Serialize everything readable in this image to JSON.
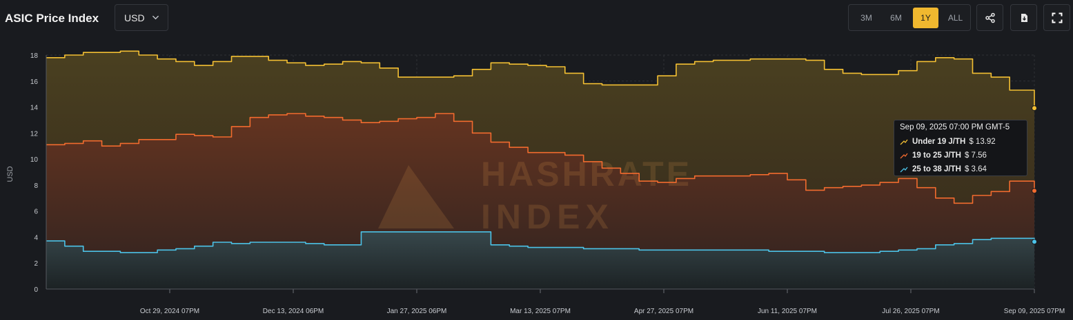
{
  "header": {
    "title": "ASIC Price Index",
    "currency": "USD",
    "ranges": [
      "3M",
      "6M",
      "1Y",
      "ALL"
    ],
    "active_range": "1Y"
  },
  "icons": {
    "share": "share-icon",
    "download": "download-icon",
    "fullscreen": "fullscreen-icon",
    "currency_dropdown": "chevron-down-icon"
  },
  "colors": {
    "under19": "#f4c033",
    "r19to25": "#f26b2e",
    "r25to38": "#4cc3e8",
    "active_range": "#f0b82f"
  },
  "watermark": [
    "HASHRATE",
    "INDEX"
  ],
  "tooltip": {
    "title": "Sep 09, 2025 07:00 PM GMT-5",
    "rows": [
      {
        "name": "Under 19 J/TH",
        "value": "$ 13.92"
      },
      {
        "name": "19 to 25 J/TH",
        "value": "$ 7.56"
      },
      {
        "name": "25 to 38 J/TH",
        "value": "$ 3.64"
      }
    ]
  },
  "chart_data": {
    "type": "line",
    "title": "",
    "xlabel": "",
    "ylabel": "USD",
    "ylim": [
      0,
      18
    ],
    "yticks": [
      0,
      2,
      4,
      6,
      8,
      10,
      12,
      14,
      16,
      18
    ],
    "xlim": [
      -1.0,
      15.0
    ],
    "xticks": [
      {
        "x": 1.0,
        "label": "Oct 29, 2024 07PM"
      },
      {
        "x": 3.0,
        "label": "Dec 13, 2024 06PM"
      },
      {
        "x": 5.0,
        "label": "Jan 27, 2025 06PM"
      },
      {
        "x": 7.0,
        "label": "Mar 13, 2025 07PM"
      },
      {
        "x": 9.0,
        "label": "Apr 27, 2025 07PM"
      },
      {
        "x": 11.0,
        "label": "Jun 11, 2025 07PM"
      },
      {
        "x": 13.0,
        "label": "Jul 26, 2025 07PM"
      },
      {
        "x": 15.0,
        "label": "Sep 09, 2025 07PM"
      }
    ],
    "grid": true,
    "series": [
      {
        "name": "Under 19 J/TH",
        "x": [
          -1.0,
          -0.7,
          -0.4,
          -0.1,
          0.2,
          0.5,
          0.8,
          1.1,
          1.4,
          1.7,
          2.0,
          2.3,
          2.6,
          2.9,
          3.2,
          3.5,
          3.8,
          4.1,
          4.4,
          4.7,
          5.0,
          5.3,
          5.6,
          5.9,
          6.2,
          6.5,
          6.8,
          7.1,
          7.4,
          7.7,
          8.0,
          8.3,
          8.6,
          8.9,
          9.2,
          9.5,
          9.8,
          10.1,
          10.4,
          10.7,
          11.0,
          11.3,
          11.6,
          11.9,
          12.2,
          12.5,
          12.8,
          13.1,
          13.4,
          13.7,
          14.0,
          14.3,
          14.6,
          15.0
        ],
        "values": [
          17.8,
          18.0,
          18.2,
          18.2,
          18.3,
          18.0,
          17.7,
          17.5,
          17.2,
          17.5,
          17.9,
          17.9,
          17.6,
          17.4,
          17.2,
          17.3,
          17.5,
          17.4,
          17.0,
          16.3,
          16.3,
          16.3,
          16.4,
          16.9,
          17.4,
          17.3,
          17.2,
          17.1,
          16.6,
          15.8,
          15.7,
          15.7,
          15.7,
          16.4,
          17.3,
          17.5,
          17.6,
          17.6,
          17.7,
          17.7,
          17.7,
          17.6,
          16.9,
          16.6,
          16.5,
          16.5,
          16.8,
          17.5,
          17.8,
          17.7,
          16.6,
          16.3,
          15.3,
          13.92
        ]
      },
      {
        "name": "19 to 25 J/TH",
        "x": [
          -1.0,
          -0.7,
          -0.4,
          -0.1,
          0.2,
          0.5,
          0.8,
          1.1,
          1.4,
          1.7,
          2.0,
          2.3,
          2.6,
          2.9,
          3.2,
          3.5,
          3.8,
          4.1,
          4.4,
          4.7,
          5.0,
          5.3,
          5.6,
          5.9,
          6.2,
          6.5,
          6.8,
          7.1,
          7.4,
          7.7,
          8.0,
          8.3,
          8.6,
          8.9,
          9.2,
          9.5,
          9.8,
          10.1,
          10.4,
          10.7,
          11.0,
          11.3,
          11.6,
          11.9,
          12.2,
          12.5,
          12.8,
          13.1,
          13.4,
          13.7,
          14.0,
          14.3,
          14.6,
          15.0
        ],
        "values": [
          11.1,
          11.2,
          11.4,
          11.0,
          11.2,
          11.5,
          11.5,
          11.9,
          11.8,
          11.7,
          12.5,
          13.2,
          13.4,
          13.5,
          13.3,
          13.2,
          13.0,
          12.8,
          12.9,
          13.1,
          13.2,
          13.5,
          12.9,
          12.0,
          11.3,
          10.9,
          10.5,
          10.5,
          10.3,
          9.8,
          9.3,
          8.9,
          8.3,
          8.2,
          8.5,
          8.7,
          8.7,
          8.7,
          8.8,
          8.9,
          8.4,
          7.6,
          7.8,
          7.9,
          8.0,
          8.2,
          8.5,
          7.8,
          7.0,
          6.6,
          7.2,
          7.5,
          8.3,
          7.56
        ]
      },
      {
        "name": "25 to 38 J/TH",
        "x": [
          -1.0,
          -0.7,
          -0.4,
          -0.1,
          0.2,
          0.5,
          0.8,
          1.1,
          1.4,
          1.7,
          2.0,
          2.3,
          2.6,
          2.9,
          3.2,
          3.5,
          3.8,
          4.1,
          4.4,
          4.7,
          5.0,
          5.3,
          5.6,
          5.9,
          6.2,
          6.5,
          6.8,
          7.1,
          7.4,
          7.7,
          8.0,
          8.3,
          8.6,
          8.9,
          9.2,
          9.5,
          9.8,
          10.1,
          10.4,
          10.7,
          11.0,
          11.3,
          11.6,
          11.9,
          12.2,
          12.5,
          12.8,
          13.1,
          13.4,
          13.7,
          14.0,
          14.3,
          14.6,
          15.0
        ],
        "values": [
          3.7,
          3.3,
          2.9,
          2.9,
          2.8,
          2.8,
          3.0,
          3.1,
          3.3,
          3.6,
          3.5,
          3.6,
          3.6,
          3.6,
          3.5,
          3.4,
          3.4,
          4.4,
          4.4,
          4.4,
          4.4,
          4.4,
          4.4,
          4.4,
          3.4,
          3.3,
          3.2,
          3.2,
          3.2,
          3.1,
          3.1,
          3.1,
          3.0,
          3.0,
          3.0,
          3.0,
          3.0,
          3.0,
          3.0,
          2.9,
          2.9,
          2.9,
          2.8,
          2.8,
          2.8,
          2.9,
          3.0,
          3.1,
          3.4,
          3.5,
          3.8,
          3.9,
          3.9,
          3.64
        ]
      }
    ],
    "hover": {
      "x": 15.0
    }
  }
}
